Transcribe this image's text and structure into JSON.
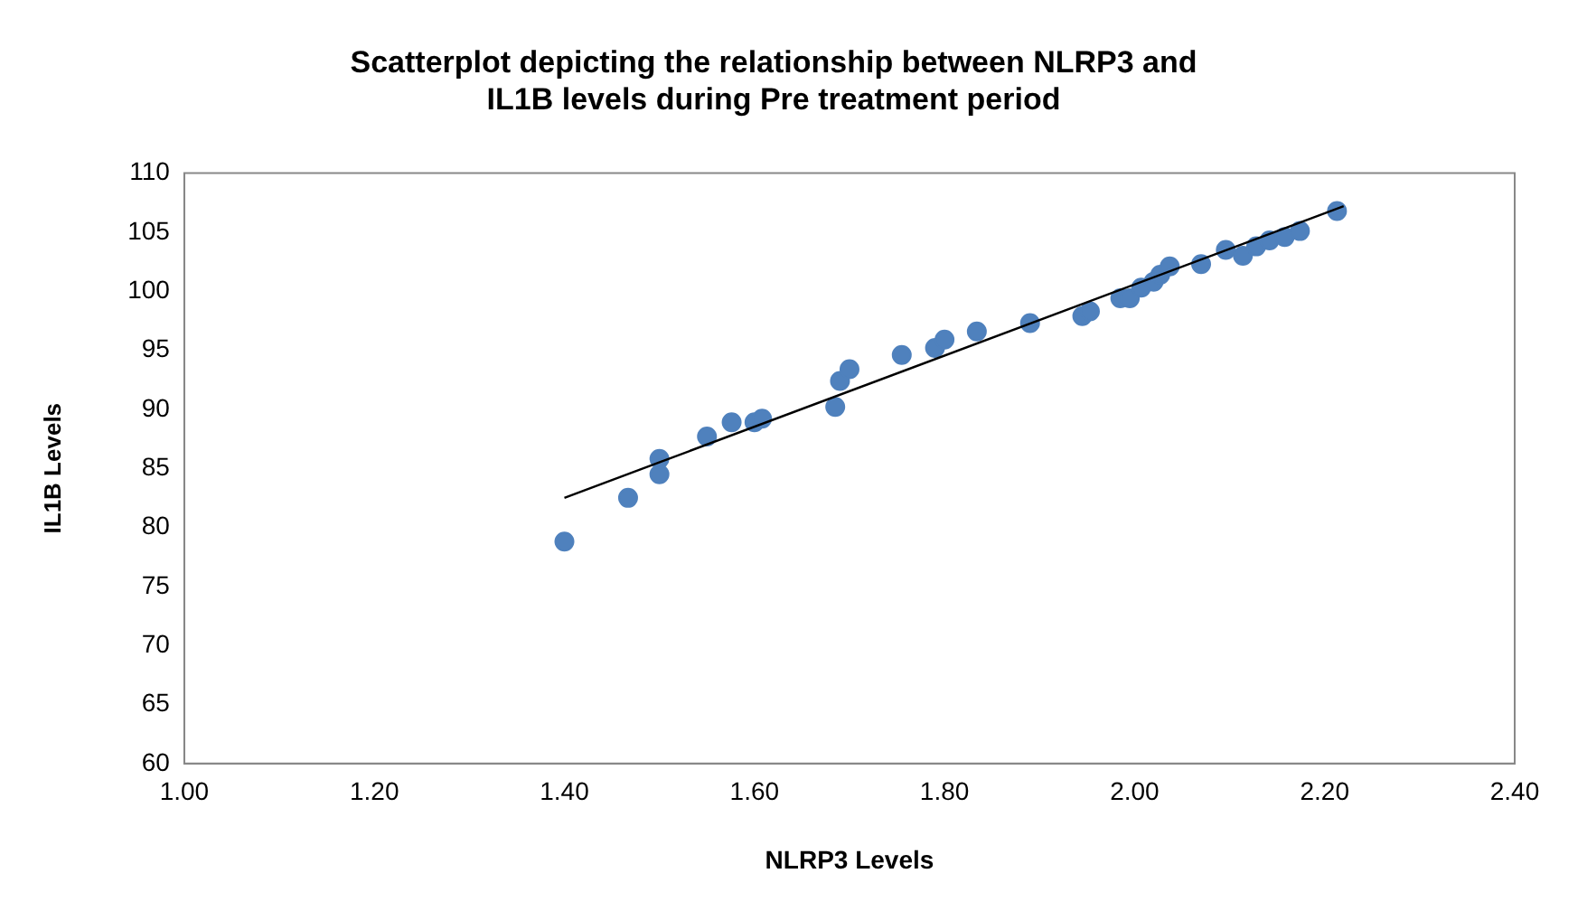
{
  "chart_data": {
    "type": "scatter",
    "title": "Scatterplot depicting the relationship between NLRP3 and IL1B levels during Pre treatment period",
    "xlabel": "NLRP3 Levels",
    "ylabel": "IL1B Levels",
    "xlim": [
      1.0,
      2.4
    ],
    "xticks": [
      {
        "value": 1.0,
        "label": "1.00"
      },
      {
        "value": 1.2,
        "label": "1.20"
      },
      {
        "value": 1.4,
        "label": "1.40"
      },
      {
        "value": 1.6,
        "label": "1.60"
      },
      {
        "value": 1.8,
        "label": "1.80"
      },
      {
        "value": 2.0,
        "label": "2.00"
      },
      {
        "value": 2.2,
        "label": "2.20"
      },
      {
        "value": 2.4,
        "label": "2.40"
      }
    ],
    "ylim": [
      60,
      110
    ],
    "yticks": [
      60,
      65,
      70,
      75,
      80,
      85,
      90,
      95,
      100,
      105,
      110
    ],
    "grid": false,
    "legend": false,
    "marker": "circle",
    "series": [
      {
        "type": "scatter",
        "color": "#4f81bd",
        "x": [
          1.4,
          1.467,
          1.5,
          1.5,
          1.55,
          1.576,
          1.6,
          1.608,
          1.685,
          1.69,
          1.7,
          1.755,
          1.79,
          1.8,
          1.834,
          1.89,
          1.945,
          1.953,
          1.985,
          1.995,
          2.007,
          2.02,
          2.027,
          2.037,
          2.07,
          2.096,
          2.114,
          2.128,
          2.142,
          2.158,
          2.174,
          2.213
        ],
        "values": [
          78.8,
          82.5,
          84.5,
          85.8,
          87.7,
          88.9,
          88.9,
          89.2,
          90.2,
          92.4,
          93.4,
          94.6,
          95.2,
          95.9,
          96.6,
          97.3,
          97.9,
          98.3,
          99.4,
          99.4,
          100.3,
          100.8,
          101.4,
          102.1,
          102.3,
          103.5,
          103.0,
          103.8,
          104.3,
          104.6,
          105.1,
          106.8
        ]
      },
      {
        "type": "line",
        "color": "#000000",
        "x": [
          1.4,
          2.22
        ],
        "values": [
          82.5,
          107.2
        ],
        "marker": "none"
      }
    ]
  }
}
